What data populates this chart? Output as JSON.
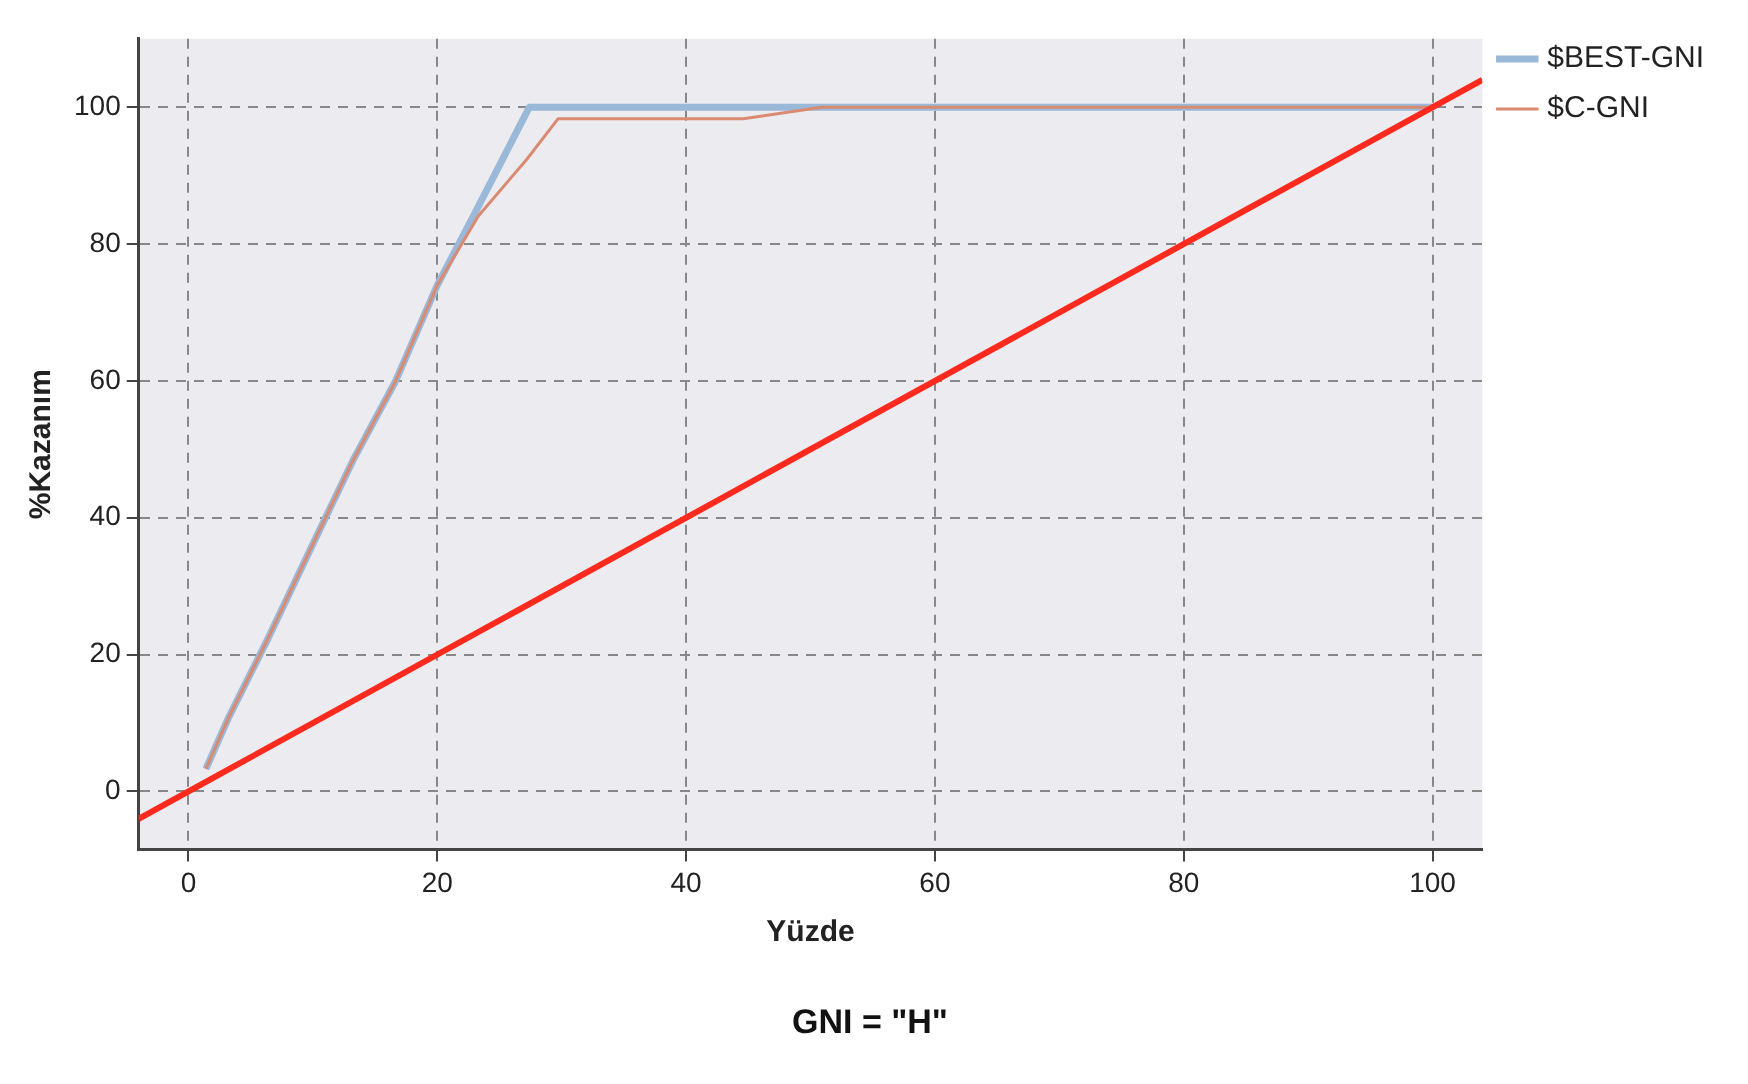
{
  "chart_data": {
    "type": "line",
    "title": "GNI = \"H\"",
    "xlabel": "Yüzde",
    "ylabel": "%Kazanım",
    "xlim": [
      -4,
      104
    ],
    "xticks": [
      0,
      20,
      40,
      60,
      80,
      100
    ],
    "ylim": [
      -8.5,
      110
    ],
    "yticks": [
      0,
      20,
      40,
      60,
      80,
      100
    ],
    "grid": true,
    "legend": "right",
    "line_style": "solid",
    "marker": "none",
    "series": [
      {
        "name": "$BEST-GNI",
        "color": "#9ab8d8",
        "x": [
          1.4,
          3.2,
          6.3,
          10.3,
          13.2,
          16.6,
          20,
          22.9,
          27.4,
          100
        ],
        "values": [
          3.3,
          10.7,
          22,
          37.3,
          48.3,
          59.8,
          74,
          84.1,
          100,
          100
        ]
      },
      {
        "name": "$C-GNI",
        "color": "#d98a70",
        "x": [
          1.4,
          3.2,
          6.3,
          10.3,
          13.2,
          16.6,
          20,
          23.3,
          27.2,
          29.7,
          44.6,
          50.9,
          100
        ],
        "values": [
          3.3,
          10.7,
          22,
          37.3,
          48.3,
          59.8,
          74,
          84.1,
          92.4,
          98.3,
          98.3,
          100,
          100
        ]
      },
      {
        "type": "line",
        "color": "#ff2a1e",
        "x": [
          -4,
          104
        ],
        "values": [
          -4,
          104
        ]
      }
    ]
  }
}
